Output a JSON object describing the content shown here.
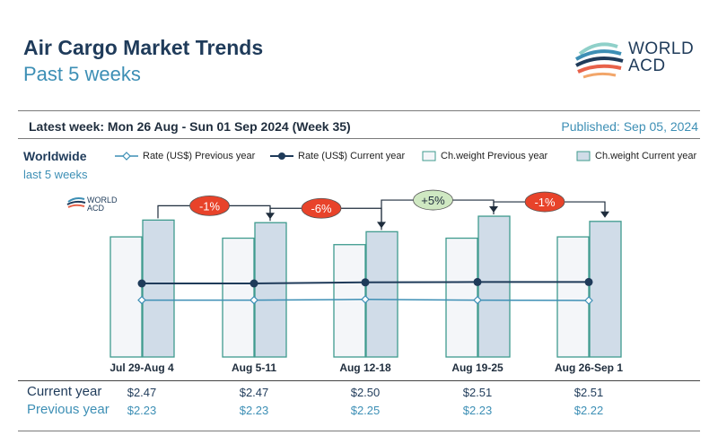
{
  "header": {
    "title": "Air Cargo Market Trends",
    "subtitle": "Past 5 weeks",
    "logo_text_line1": "WORLD",
    "logo_text_line2": "ACD",
    "latest_week": "Latest week: Mon 26 Aug - Sun 01 Sep 2024 (Week 35)",
    "published": "Published: Sep 05, 2024"
  },
  "section": {
    "region": "Worldwide",
    "period": "last 5 weeks"
  },
  "small_logo": {
    "line1": "WORLD",
    "line2": "ACD"
  },
  "legend": {
    "rate_prev": "Rate (US$) Previous year",
    "rate_curr": "Rate (US$) Current year",
    "weight_prev": "Ch.weight Previous year",
    "weight_curr": "Ch.weight Current year"
  },
  "table": {
    "current_label": "Current year",
    "previous_label": "Previous year"
  },
  "colors": {
    "navy": "#1f3b5a",
    "teal": "#3d8fb5",
    "bar_prev_fill": "#f4f6f9",
    "bar_prev_stroke": "#3f9b8e",
    "bar_curr_fill": "#d0dce8",
    "bar_curr_stroke": "#3f9b8e",
    "badge_red": "#e8432a",
    "badge_green": "#cfe8c2"
  },
  "chart_data": {
    "type": "bar",
    "categories": [
      "Jul 29-Aug 4",
      "Aug 5-11",
      "Aug 12-18",
      "Aug 19-25",
      "Aug 26-Sep 1"
    ],
    "weight_index": {
      "previous_year": [
        93,
        92,
        87,
        92,
        93
      ],
      "current_year": [
        106,
        104,
        97,
        109,
        105
      ]
    },
    "rate_usd": {
      "current_year": [
        2.47,
        2.47,
        2.5,
        2.51,
        2.51
      ],
      "current_year_labels": [
        "$2.47",
        "$2.47",
        "$2.50",
        "$2.51",
        "$2.51"
      ],
      "previous_year": [
        2.23,
        2.23,
        2.25,
        2.23,
        2.22
      ],
      "previous_year_labels": [
        "$2.23",
        "$2.23",
        "$2.25",
        "$2.23",
        "$2.22"
      ]
    },
    "week_over_week_change": [
      "-1%",
      "-6%",
      "+5%",
      "-1%"
    ],
    "change_sign": [
      "neg",
      "neg",
      "pos",
      "neg"
    ]
  }
}
